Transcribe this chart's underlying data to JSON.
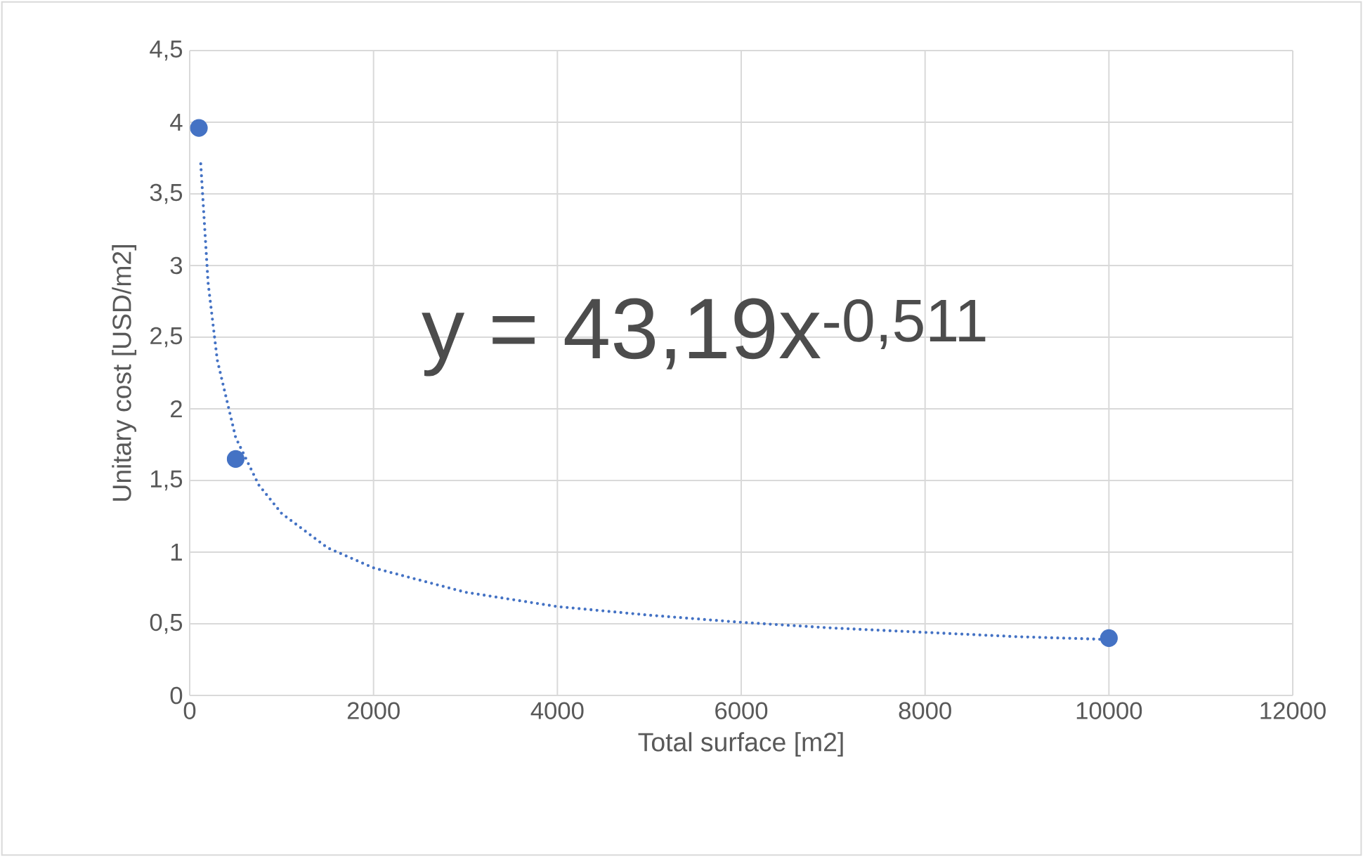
{
  "chart_data": {
    "type": "scatter",
    "xlabel": "Total surface [m2]",
    "ylabel": "Unitary cost [USD/m2]",
    "annotations": [
      "y = 43,19x$^{-0,511}$"
    ],
    "xlim": [
      0,
      12000
    ],
    "xticks": [
      0,
      2000,
      4000,
      6000,
      8000,
      10000,
      12000
    ],
    "ylim": [
      0,
      4.5
    ],
    "yticks": [
      0,
      {
        "value": 0.5,
        "label": "0,5"
      },
      1,
      {
        "value": 1.5,
        "label": "1,5"
      },
      2,
      {
        "value": 2.5,
        "label": "2,5"
      },
      3,
      {
        "value": 3.5,
        "label": "3,5"
      },
      4,
      {
        "value": 4.5,
        "label": "4,5"
      }
    ],
    "grid": true,
    "series": [
      {
        "type": "line",
        "color": "#4472c4",
        "marker": "none",
        "line_style": "dotted",
        "x": [
          120,
          200,
          300,
          500,
          750,
          1000,
          1500,
          2000,
          3000,
          4000,
          5000,
          6000,
          7000,
          8000,
          9000,
          10000
        ],
        "values": [
          3.71,
          2.88,
          2.34,
          1.8,
          1.47,
          1.27,
          1.03,
          0.89,
          0.72,
          0.62,
          0.56,
          0.51,
          0.47,
          0.44,
          0.41,
          0.39
        ]
      },
      {
        "type": "scatter",
        "color": "#4472c4",
        "marker": "circle",
        "x": [
          100,
          500,
          10000
        ],
        "values": [
          3.96,
          1.65,
          0.4
        ]
      }
    ]
  }
}
